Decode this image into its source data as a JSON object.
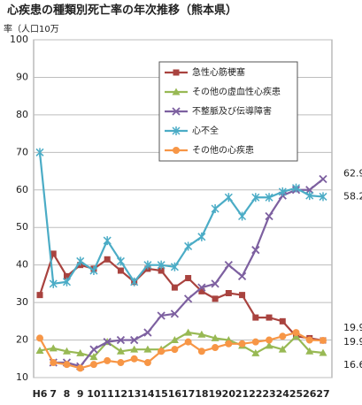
{
  "chart_data": {
    "type": "line",
    "title": "心疾患の種類別死亡率の年次推移（熊本県）",
    "y_label": "率（人口10万",
    "categories": [
      "H6",
      "7",
      "8",
      "9",
      "10",
      "11",
      "12",
      "13",
      "14",
      "15",
      "16",
      "17",
      "18",
      "19",
      "20",
      "21",
      "22",
      "23",
      "24",
      "25",
      "26",
      "27"
    ],
    "ylim": [
      10,
      100
    ],
    "yticks": [
      10,
      20,
      30,
      40,
      50,
      60,
      70,
      80,
      90,
      100
    ],
    "grid": true,
    "end_labels": true,
    "legend": "upper center",
    "series": [
      {
        "name": "急性心筋梗塞",
        "color": "#a9433f",
        "marker": "square",
        "values": [
          32,
          43,
          37,
          40,
          39,
          41.5,
          38.5,
          35.5,
          39,
          38.5,
          34,
          36.5,
          33,
          31,
          32.5,
          32,
          26,
          26,
          25,
          21,
          20.5,
          19.9
        ]
      },
      {
        "name": "その他の虚血性心疾患",
        "color": "#98b954",
        "marker": "triangle",
        "values": [
          17.2,
          17.8,
          17,
          16.5,
          15.5,
          19.5,
          17,
          17.5,
          17.5,
          17.5,
          20,
          22,
          21.5,
          20.5,
          20,
          18.5,
          16.5,
          18.5,
          17.5,
          21,
          17,
          16.6
        ]
      },
      {
        "name": "不整脈及び伝導障害",
        "color": "#7d60a0",
        "marker": "x",
        "values": [
          null,
          14,
          14,
          13,
          17.5,
          19.5,
          20,
          20,
          22,
          26.5,
          27,
          31,
          34,
          35,
          40,
          37,
          44,
          53,
          58.5,
          60,
          60,
          62.9
        ]
      },
      {
        "name": "心不全",
        "color": "#4bacc6",
        "marker": "star",
        "values": [
          70,
          35,
          35.5,
          41,
          38.5,
          46.5,
          41,
          35.5,
          40,
          40,
          39.5,
          45,
          47.5,
          55,
          58,
          53,
          58,
          58,
          59.5,
          60.5,
          58.5,
          58.2
        ]
      },
      {
        "name": "その他の心疾患",
        "color": "#f79646",
        "marker": "circle",
        "values": [
          20.5,
          14,
          13.5,
          12.5,
          13.5,
          14.5,
          14,
          15,
          14,
          17,
          17.5,
          19.5,
          17,
          18,
          19,
          19,
          19.5,
          20,
          21,
          22,
          20,
          19.9
        ]
      }
    ]
  }
}
